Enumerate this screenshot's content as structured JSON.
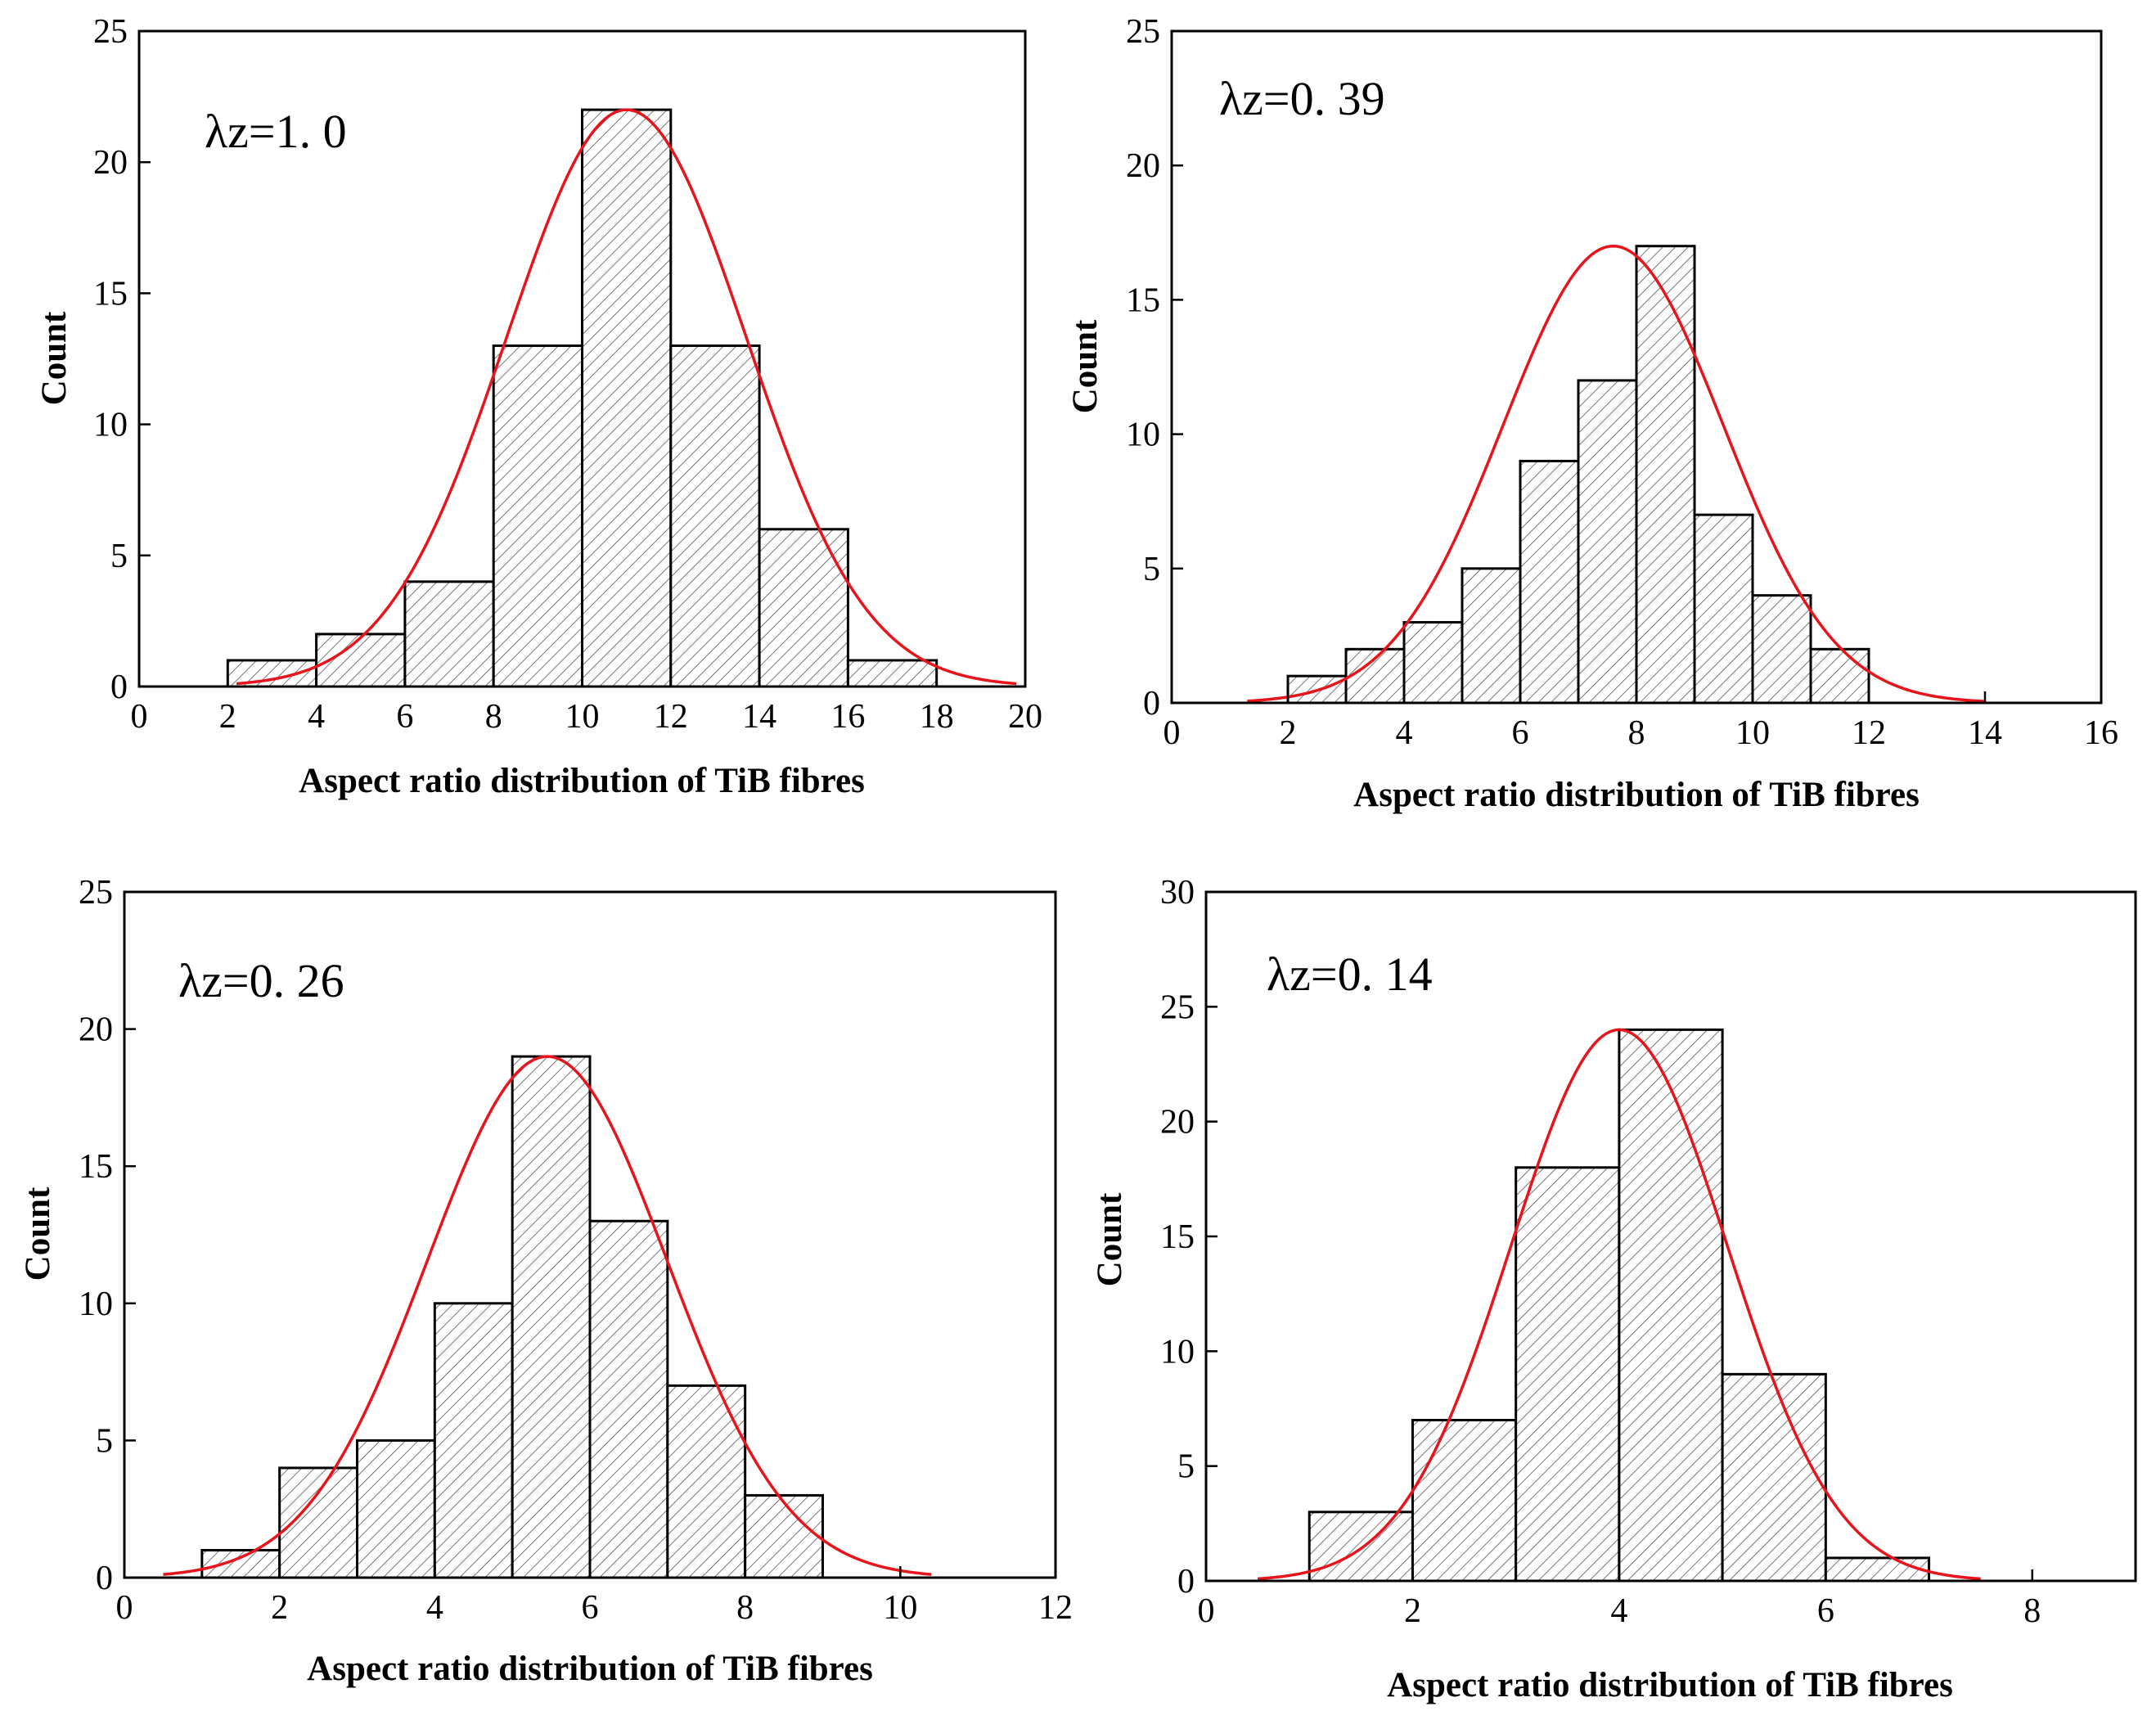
{
  "colors": {
    "fit_curve": "#e8141c",
    "bar_edge": "#000000",
    "hatch": "#555555",
    "frame": "#000000"
  },
  "chart_data": [
    {
      "type": "bar",
      "panel": "top-left",
      "annotation": "λz=1. 0",
      "xlabel": "Aspect ratio distribution of TiB fibres",
      "ylabel": "Count",
      "xlim": [
        0,
        20
      ],
      "ylim": [
        0,
        25
      ],
      "xticks": [
        0,
        2,
        4,
        6,
        8,
        10,
        12,
        14,
        16,
        18,
        20
      ],
      "yticks": [
        0,
        5,
        10,
        15,
        20,
        25
      ],
      "bin_edges": [
        2,
        4,
        6,
        8,
        10,
        12,
        14,
        16,
        18
      ],
      "counts": [
        1,
        2,
        4,
        13,
        22,
        13,
        6,
        1
      ],
      "fit": {
        "type": "gaussian",
        "mean": 11.0,
        "sd": 2.7,
        "peak": 22.0,
        "x_range": [
          2.2,
          19.8
        ]
      }
    },
    {
      "type": "bar",
      "panel": "top-right",
      "annotation": "λz=0. 39",
      "xlabel": "Aspect ratio distribution of TiB fibres",
      "ylabel": "Count",
      "xlim": [
        0,
        16
      ],
      "ylim": [
        0,
        25
      ],
      "xticks": [
        0,
        2,
        4,
        6,
        8,
        10,
        12,
        14,
        16
      ],
      "yticks": [
        0,
        5,
        10,
        15,
        20,
        25
      ],
      "bin_edges": [
        2,
        3,
        4,
        5,
        6,
        7,
        8,
        9,
        10,
        11,
        12
      ],
      "counts": [
        1,
        2,
        3,
        5,
        9,
        12,
        17,
        7,
        4,
        2
      ],
      "fit": {
        "type": "gaussian",
        "mean": 7.6,
        "sd": 1.9,
        "peak": 17.0,
        "x_range": [
          1.3,
          14.0
        ]
      }
    },
    {
      "type": "bar",
      "panel": "bottom-left",
      "annotation": "λz=0. 26",
      "xlabel": "Aspect ratio distribution of TiB fibres",
      "ylabel": "Count",
      "xlim": [
        0,
        12
      ],
      "ylim": [
        0,
        25
      ],
      "xticks": [
        0,
        2,
        4,
        6,
        8,
        10,
        12
      ],
      "yticks": [
        0,
        5,
        10,
        15,
        20,
        25
      ],
      "bin_edges": [
        1,
        2,
        3,
        4,
        5,
        6,
        7,
        8,
        9
      ],
      "counts": [
        1,
        4,
        5,
        10,
        19,
        13,
        7,
        3
      ],
      "fit": {
        "type": "gaussian",
        "mean": 5.45,
        "sd": 1.55,
        "peak": 19.0,
        "x_range": [
          0.5,
          10.4
        ]
      }
    },
    {
      "type": "bar",
      "panel": "bottom-right",
      "annotation": "λz=0. 14",
      "xlabel": "Aspect ratio distribution of TiB fibres",
      "ylabel": "Count",
      "xlim": [
        0,
        9
      ],
      "ylim": [
        0,
        30
      ],
      "xticks": [
        0,
        2,
        4,
        6,
        8
      ],
      "yticks": [
        0,
        5,
        10,
        15,
        20,
        25,
        30
      ],
      "bin_edges": [
        1,
        2,
        3,
        4,
        5,
        6,
        7
      ],
      "counts": [
        3,
        7,
        18,
        24,
        9,
        1
      ],
      "fit": {
        "type": "gaussian",
        "mean": 4.0,
        "sd": 1.05,
        "peak": 24.0,
        "x_range": [
          0.5,
          7.5
        ]
      }
    }
  ]
}
